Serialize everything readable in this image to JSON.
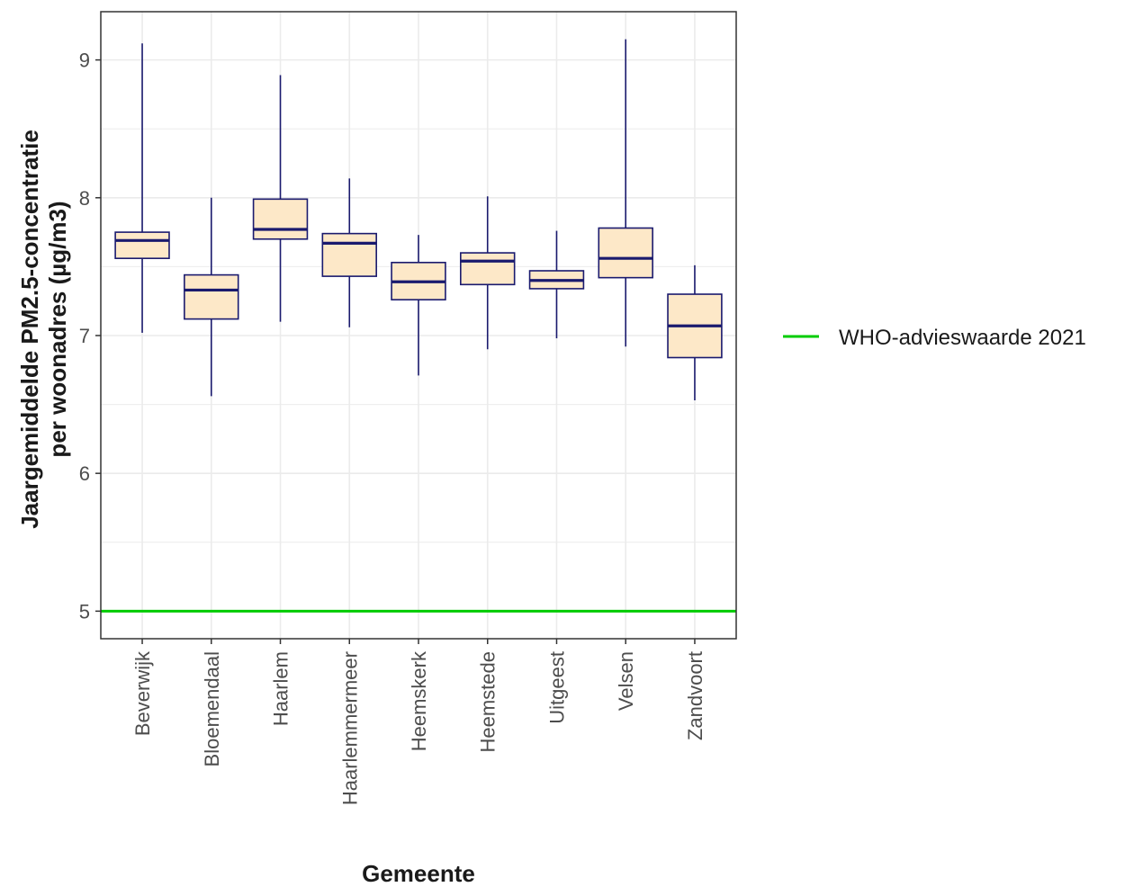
{
  "chart_data": {
    "type": "boxplot",
    "xlabel": "Gemeente",
    "ylabel": [
      "Jaargemiddelde PM2.5-concentratie",
      "per woonadres (µg/m3)"
    ],
    "ylim": [
      4.8,
      9.35
    ],
    "yticks": [
      5,
      6,
      7,
      8,
      9
    ],
    "grid": true,
    "categories": [
      "Beverwijk",
      "Bloemendaal",
      "Haarlem",
      "Haarlemmermeer",
      "Heemskerk",
      "Heemstede",
      "Uitgeest",
      "Velsen",
      "Zandvoort"
    ],
    "boxes": [
      {
        "category": "Beverwijk",
        "min": 7.02,
        "q1": 7.56,
        "median": 7.69,
        "q3": 7.75,
        "max": 9.12
      },
      {
        "category": "Bloemendaal",
        "min": 6.56,
        "q1": 7.12,
        "median": 7.33,
        "q3": 7.44,
        "max": 8.0
      },
      {
        "category": "Haarlem",
        "min": 7.1,
        "q1": 7.7,
        "median": 7.77,
        "q3": 7.99,
        "max": 8.89
      },
      {
        "category": "Haarlemmermeer",
        "min": 7.06,
        "q1": 7.43,
        "median": 7.67,
        "q3": 7.74,
        "max": 8.14
      },
      {
        "category": "Heemskerk",
        "min": 6.71,
        "q1": 7.26,
        "median": 7.39,
        "q3": 7.53,
        "max": 7.73
      },
      {
        "category": "Heemstede",
        "min": 6.9,
        "q1": 7.37,
        "median": 7.54,
        "q3": 7.6,
        "max": 8.01
      },
      {
        "category": "Uitgeest",
        "min": 6.98,
        "q1": 7.34,
        "median": 7.4,
        "q3": 7.47,
        "max": 7.76
      },
      {
        "category": "Velsen",
        "min": 6.92,
        "q1": 7.42,
        "median": 7.56,
        "q3": 7.78,
        "max": 9.15
      },
      {
        "category": "Zandvoort",
        "min": 6.53,
        "q1": 6.84,
        "median": 7.07,
        "q3": 7.3,
        "max": 7.51
      }
    ],
    "reference_line": {
      "label": "WHO-advieswaarde 2021",
      "value": 5.0,
      "color": "#00cc00"
    },
    "legend": {
      "placement": "right",
      "entries": [
        "WHO-advieswaarde 2021"
      ]
    },
    "colors": {
      "box_fill": "#fde8c8",
      "box_stroke": "#1a1a6e",
      "grid": "#ebebeb",
      "panel_border": "#333333"
    }
  }
}
